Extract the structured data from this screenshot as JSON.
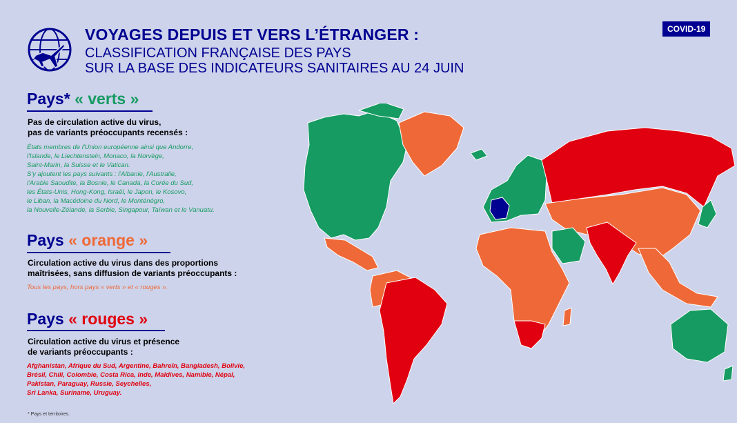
{
  "header": {
    "title": "VOYAGES DEPUIS ET VERS L’ÉTRANGER :",
    "subtitle_line1": "CLASSIFICATION FRANÇAISE DES PAYS",
    "subtitle_line2": "SUR LA BASE DES INDICATEURS SANITAIRES AU 24 JUIN",
    "badge": "COVID-19",
    "logo_icon": "globe-airplane-icon"
  },
  "colors": {
    "navy": "#000091",
    "green": "#169b62",
    "orange": "#ef6938",
    "red": "#e1000f",
    "france": "#000091",
    "background": "#cdd3ea"
  },
  "green": {
    "prefix": "Pays*",
    "label": "« verts »",
    "desc_line1": "Pas de circulation active du virus,",
    "desc_line2": "pas de variants préoccupants recensés :",
    "list": [
      "États membres de l'Union européenne ainsi que Andorre,",
      "l'Islande, le Liechtenstein, Monaco, la Norvège,",
      "Saint-Marin, la Suisse et le Vatican.",
      "S'y ajoutent les pays suivants : l'Albanie, l'Australie,",
      "l'Arabie Saoudite, la Bosnie, le Canada, la Corée du Sud,",
      "les États-Unis, Hong-Kong, Israël, le Japon, le Kosovo,",
      "le Liban, la Macédoine du Nord, le Monténégro,",
      "la Nouvelle-Zélande, la Serbie, Singapour, Taïwan et le Vanuatu."
    ]
  },
  "orange": {
    "prefix": "Pays",
    "label": "« orange »",
    "desc_line1": "Circulation active du virus dans des proportions",
    "desc_line2": "maîtrisées, sans diffusion de variants préoccupants :",
    "list": [
      "Tous les pays, hors pays « verts » et « rouges »."
    ]
  },
  "red": {
    "prefix": "Pays",
    "label": "« rouges »",
    "desc_line1": "Circulation active du virus et présence",
    "desc_line2": "de variants préoccupants :",
    "list": [
      "Afghanistan, Afrique du Sud, Argentine, Bahreïn, Bangladesh, Bolivie,",
      "Brésil, Chili, Colombie, Costa Rica, Inde, Maldives, Namibie, Népal,",
      "Pakistan, Paraguay, Russie, Seychelles,",
      "Sri Lanka, Suriname, Uruguay."
    ]
  },
  "footnote": "* Pays et territoires."
}
